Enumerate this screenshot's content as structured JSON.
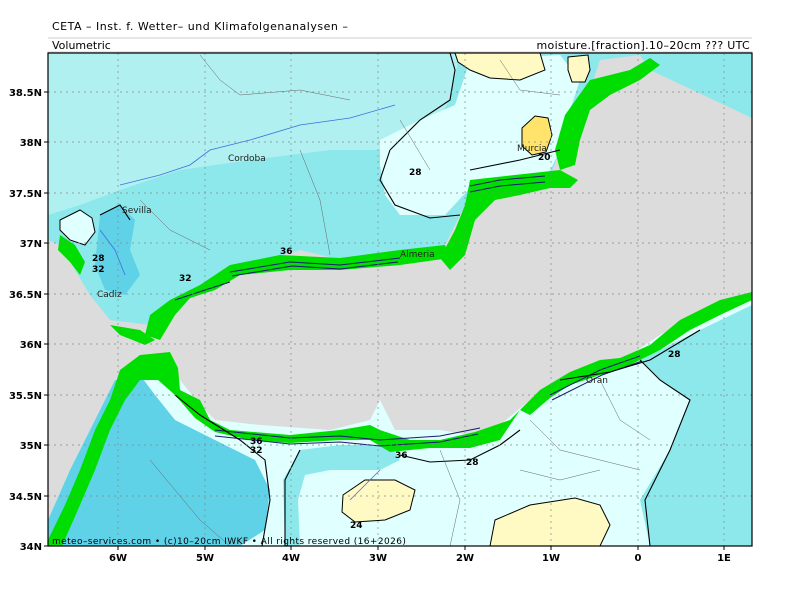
{
  "header": {
    "title": "CETA – Inst. f. Wetter– und Klimafolgenanalysen –",
    "subtitle_left": "Volumetric",
    "subtitle_right": "moisture.[fraction].10–20cm ??? UTC"
  },
  "footer": "meteo–services.com • (c)10–20cm IWKF • All rights reserved (16+2026)",
  "axes": {
    "y_ticks": [
      "38.5N",
      "38N",
      "37.5N",
      "37N",
      "36.5N",
      "36N",
      "35.5N",
      "35N",
      "34.5N",
      "34N"
    ],
    "x_ticks": [
      "6W",
      "5W",
      "4W",
      "3W",
      "2W",
      "1W",
      "0",
      "1E"
    ]
  },
  "cities": [
    "Cordoba",
    "Sevilla",
    "Cadiz",
    "Almeria",
    "Murcia",
    "Oran"
  ],
  "contour_labels": [
    "28",
    "32",
    "36",
    "32",
    "28",
    "20",
    "28",
    "36",
    "32",
    "36",
    "28",
    "24",
    "28"
  ],
  "colors": {
    "sea": "#dcdcdc",
    "land_mask": "#00dd00",
    "moisture_20": "#fff9c4",
    "moisture_24": "#e0ffff",
    "moisture_28": "#b0f0f0",
    "moisture_30": "#8de8ec",
    "moisture_32": "#5fd2e8",
    "river": "#3b6fe0"
  }
}
